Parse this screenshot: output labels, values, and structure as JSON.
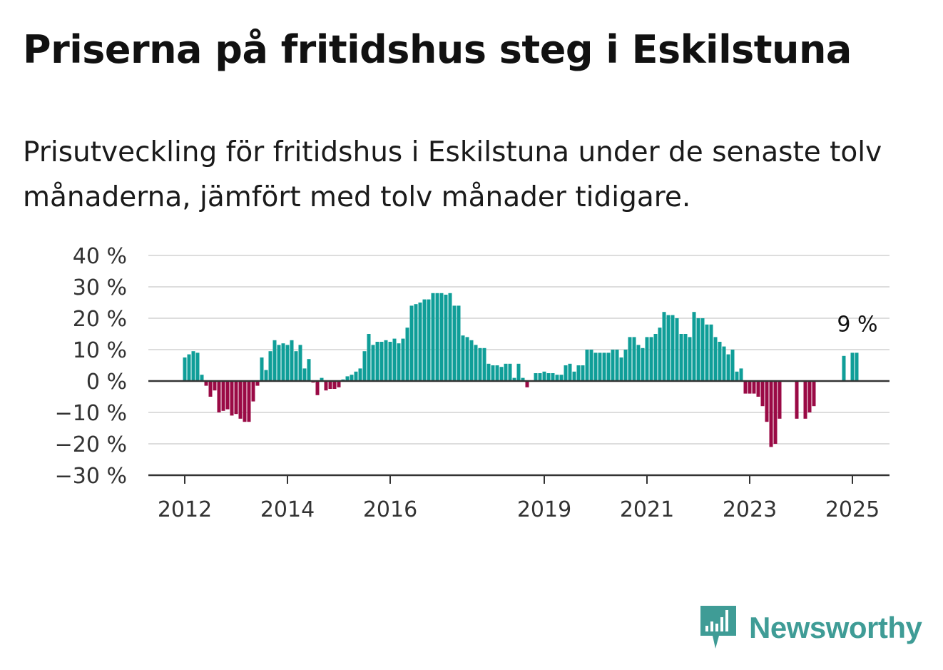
{
  "colors": {
    "positive": "#0f9e98",
    "negative": "#9a0a45",
    "grid": "#dddddd",
    "axis": "#333333",
    "brand": "#3f9c96"
  },
  "logo": {
    "text": "Newsworthy",
    "icon": "newsworthy-logo-icon"
  },
  "chart_data": {
    "type": "bar",
    "title": "Priserna på fritidshus steg i Eskilstuna",
    "subtitle": "Prisutveckling för fritidshus i Eskilstuna under de senaste tolv månaderna, jämfört med tolv månader tidigare.",
    "xlabel": "",
    "ylabel": "",
    "ylim": [
      -30,
      40
    ],
    "yticks": [
      -30,
      -20,
      -10,
      0,
      10,
      20,
      30,
      40
    ],
    "ytick_labels": [
      "−30 %",
      "−20 %",
      "−10 %",
      "0 %",
      "10 %",
      "20 %",
      "30 %",
      "40 %"
    ],
    "grid": true,
    "xrange": [
      "2011-05",
      "2025-12"
    ],
    "xticks": [
      "2012-01",
      "2014-01",
      "2016-01",
      "2019-01",
      "2021-01",
      "2023-01",
      "2025-01"
    ],
    "xtick_labels": [
      "2012",
      "2014",
      "2016",
      "2019",
      "2021",
      "2023",
      "2025"
    ],
    "last_value_label": "9 %",
    "series": [
      {
        "values": [
          [
            "2012-01",
            7.5
          ],
          [
            "2012-02",
            8.5
          ],
          [
            "2012-03",
            9.5
          ],
          [
            "2012-04",
            9
          ],
          [
            "2012-05",
            2
          ],
          [
            "2012-06",
            -1.5
          ],
          [
            "2012-07",
            -5
          ],
          [
            "2012-08",
            -3
          ],
          [
            "2012-09",
            -10
          ],
          [
            "2012-10",
            -9.5
          ],
          [
            "2012-11",
            -9
          ],
          [
            "2012-12",
            -11
          ],
          [
            "2013-01",
            -10.5
          ],
          [
            "2013-02",
            -12
          ],
          [
            "2013-03",
            -13
          ],
          [
            "2013-04",
            -13
          ],
          [
            "2013-05",
            -6.5
          ],
          [
            "2013-06",
            -1.5
          ],
          [
            "2013-07",
            7.5
          ],
          [
            "2013-08",
            3.5
          ],
          [
            "2013-09",
            9.5
          ],
          [
            "2013-10",
            13
          ],
          [
            "2013-11",
            11.5
          ],
          [
            "2013-12",
            12
          ],
          [
            "2014-01",
            11.5
          ],
          [
            "2014-02",
            13
          ],
          [
            "2014-03",
            9.5
          ],
          [
            "2014-04",
            11.5
          ],
          [
            "2014-05",
            4
          ],
          [
            "2014-06",
            7
          ],
          [
            "2014-07",
            -0.5
          ],
          [
            "2014-08",
            -4.5
          ],
          [
            "2014-09",
            1
          ],
          [
            "2014-10",
            -3
          ],
          [
            "2014-11",
            -2.5
          ],
          [
            "2014-12",
            -2.5
          ],
          [
            "2015-01",
            -2
          ],
          [
            "2015-02",
            0.5
          ],
          [
            "2015-03",
            1.5
          ],
          [
            "2015-04",
            2
          ],
          [
            "2015-05",
            3
          ],
          [
            "2015-06",
            4
          ],
          [
            "2015-07",
            9.5
          ],
          [
            "2015-08",
            15
          ],
          [
            "2015-09",
            11.5
          ],
          [
            "2015-10",
            12.5
          ],
          [
            "2015-11",
            12.5
          ],
          [
            "2015-12",
            13
          ],
          [
            "2016-01",
            12.5
          ],
          [
            "2016-02",
            13.5
          ],
          [
            "2016-03",
            12
          ],
          [
            "2016-04",
            13.5
          ],
          [
            "2016-05",
            17
          ],
          [
            "2016-06",
            24
          ],
          [
            "2016-07",
            24.5
          ],
          [
            "2016-08",
            25
          ],
          [
            "2016-09",
            26
          ],
          [
            "2016-10",
            26
          ],
          [
            "2016-11",
            28
          ],
          [
            "2016-12",
            28
          ],
          [
            "2017-01",
            28
          ],
          [
            "2017-02",
            27.5
          ],
          [
            "2017-03",
            28
          ],
          [
            "2017-04",
            24
          ],
          [
            "2017-05",
            24
          ],
          [
            "2017-06",
            14.5
          ],
          [
            "2017-07",
            14
          ],
          [
            "2017-08",
            13
          ],
          [
            "2017-09",
            11.5
          ],
          [
            "2017-10",
            10.5
          ],
          [
            "2017-11",
            10.5
          ],
          [
            "2017-12",
            5.5
          ],
          [
            "2018-01",
            5
          ],
          [
            "2018-02",
            5
          ],
          [
            "2018-03",
            4.5
          ],
          [
            "2018-04",
            5.5
          ],
          [
            "2018-05",
            5.5
          ],
          [
            "2018-06",
            1
          ],
          [
            "2018-07",
            5.5
          ],
          [
            "2018-08",
            1
          ],
          [
            "2018-09",
            -2
          ],
          [
            "2018-11",
            2.5
          ],
          [
            "2018-12",
            2.5
          ],
          [
            "2019-01",
            3
          ],
          [
            "2019-02",
            2.5
          ],
          [
            "2019-03",
            2.5
          ],
          [
            "2019-04",
            2
          ],
          [
            "2019-05",
            2
          ],
          [
            "2019-06",
            5
          ],
          [
            "2019-07",
            5.5
          ],
          [
            "2019-08",
            3
          ],
          [
            "2019-09",
            5
          ],
          [
            "2019-10",
            5
          ],
          [
            "2019-11",
            10
          ],
          [
            "2019-12",
            10
          ],
          [
            "2020-01",
            9
          ],
          [
            "2020-02",
            9
          ],
          [
            "2020-03",
            9
          ],
          [
            "2020-04",
            9
          ],
          [
            "2020-05",
            10
          ],
          [
            "2020-06",
            10
          ],
          [
            "2020-07",
            7.5
          ],
          [
            "2020-08",
            10
          ],
          [
            "2020-09",
            14
          ],
          [
            "2020-10",
            14
          ],
          [
            "2020-11",
            11.5
          ],
          [
            "2020-12",
            10.5
          ],
          [
            "2021-01",
            14
          ],
          [
            "2021-02",
            14
          ],
          [
            "2021-03",
            15
          ],
          [
            "2021-04",
            17
          ],
          [
            "2021-05",
            22
          ],
          [
            "2021-06",
            21
          ],
          [
            "2021-07",
            21
          ],
          [
            "2021-08",
            20
          ],
          [
            "2021-09",
            15
          ],
          [
            "2021-10",
            15
          ],
          [
            "2021-11",
            14
          ],
          [
            "2021-12",
            22
          ],
          [
            "2022-01",
            20
          ],
          [
            "2022-02",
            20
          ],
          [
            "2022-03",
            18
          ],
          [
            "2022-04",
            18
          ],
          [
            "2022-05",
            14
          ],
          [
            "2022-06",
            12.5
          ],
          [
            "2022-07",
            11
          ],
          [
            "2022-08",
            8.5
          ],
          [
            "2022-09",
            10
          ],
          [
            "2022-10",
            3
          ],
          [
            "2022-11",
            4
          ],
          [
            "2022-12",
            -4
          ],
          [
            "2023-01",
            -4
          ],
          [
            "2023-02",
            -4
          ],
          [
            "2023-03",
            -5
          ],
          [
            "2023-04",
            -8
          ],
          [
            "2023-05",
            -13
          ],
          [
            "2023-06",
            -21
          ],
          [
            "2023-07",
            -20
          ],
          [
            "2023-08",
            -12
          ],
          [
            "2023-12",
            -12
          ],
          [
            "2024-02",
            -12
          ],
          [
            "2024-03",
            -10
          ],
          [
            "2024-04",
            -8
          ],
          [
            "2024-11",
            8
          ],
          [
            "2025-01",
            9
          ],
          [
            "2025-02",
            9
          ]
        ]
      }
    ]
  }
}
